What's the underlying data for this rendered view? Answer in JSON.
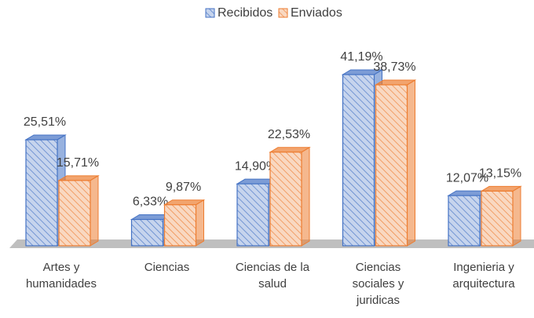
{
  "chart_data": {
    "type": "bar3d",
    "categories": [
      "Artes y humanidades",
      "Ciencias",
      "Ciencias de la salud",
      "Ciencias sociales y juridicas",
      "Ingenieria y arquitectura"
    ],
    "series": [
      {
        "name": "Recibidos",
        "color": "#4472c4",
        "values": [
          25.51,
          6.33,
          14.9,
          41.19,
          12.07
        ],
        "value_labels": [
          "25,51%",
          "6,33%",
          "14,90%",
          "41,19%",
          "12,07%"
        ]
      },
      {
        "name": "Enviados",
        "color": "#ed7d31",
        "values": [
          15.71,
          9.87,
          22.53,
          38.73,
          13.15
        ],
        "value_labels": [
          "15,71%",
          "9,87%",
          "22,53%",
          "38,73%",
          "13,15%"
        ]
      }
    ],
    "legend": "top"
  }
}
